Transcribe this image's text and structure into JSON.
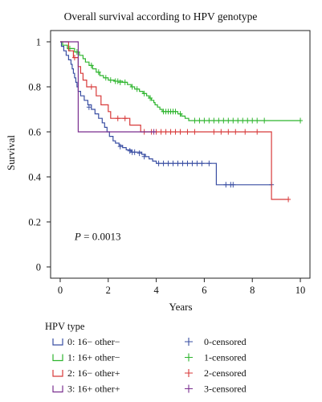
{
  "chart_data": {
    "type": "line",
    "subtype": "kaplan-meier-step",
    "title": "Overall survival according to HPV genotype",
    "xlabel": "Years",
    "ylabel": "Survival",
    "xlim": [
      -0.4,
      10.4
    ],
    "ylim": [
      -0.05,
      1.05
    ],
    "xticks": [
      0,
      2,
      4,
      6,
      8,
      10
    ],
    "yticks": [
      0,
      0.2,
      0.4,
      0.6,
      0.8,
      1
    ],
    "annotation": {
      "text": "P = 0.0013",
      "italic_part": "P",
      "rest": " = 0.0013",
      "x": 0.6,
      "y": 0.12
    },
    "grid": false,
    "legend": {
      "title": "HPV type",
      "placement": "bottom",
      "line_items": [
        "0: 16− other−",
        "1: 16+ other−",
        "2: 16− other+",
        "3: 16+ other+"
      ],
      "censor_items": [
        "0-censored",
        "1-censored",
        "2-censored",
        "3-censored"
      ]
    },
    "series": [
      {
        "name": "0: 16− other−",
        "censor_label": "0-censored",
        "color": "#3a4fa3",
        "steps": [
          [
            0,
            1.0
          ],
          [
            0.05,
            0.98
          ],
          [
            0.15,
            0.96
          ],
          [
            0.25,
            0.94
          ],
          [
            0.35,
            0.92
          ],
          [
            0.45,
            0.9
          ],
          [
            0.5,
            0.88
          ],
          [
            0.55,
            0.86
          ],
          [
            0.6,
            0.84
          ],
          [
            0.65,
            0.82
          ],
          [
            0.7,
            0.8
          ],
          [
            0.75,
            0.78
          ],
          [
            0.85,
            0.76
          ],
          [
            1.0,
            0.74
          ],
          [
            1.15,
            0.72
          ],
          [
            1.3,
            0.7
          ],
          [
            1.45,
            0.68
          ],
          [
            1.6,
            0.66
          ],
          [
            1.75,
            0.64
          ],
          [
            1.85,
            0.62
          ],
          [
            1.95,
            0.6
          ],
          [
            2.05,
            0.58
          ],
          [
            2.2,
            0.56
          ],
          [
            2.3,
            0.55
          ],
          [
            2.45,
            0.54
          ],
          [
            2.6,
            0.53
          ],
          [
            2.75,
            0.52
          ],
          [
            2.95,
            0.51
          ],
          [
            3.4,
            0.5
          ],
          [
            3.55,
            0.49
          ],
          [
            3.7,
            0.48
          ],
          [
            3.85,
            0.47
          ],
          [
            4.0,
            0.46
          ],
          [
            6.5,
            0.365
          ],
          [
            8.8,
            0.365
          ]
        ],
        "censored": [
          [
            1.2,
            0.71
          ],
          [
            2.5,
            0.535
          ],
          [
            2.9,
            0.515
          ],
          [
            3.0,
            0.51
          ],
          [
            3.1,
            0.51
          ],
          [
            3.3,
            0.505
          ],
          [
            3.5,
            0.49
          ],
          [
            4.1,
            0.46
          ],
          [
            4.3,
            0.46
          ],
          [
            4.5,
            0.46
          ],
          [
            4.7,
            0.46
          ],
          [
            4.9,
            0.46
          ],
          [
            5.1,
            0.46
          ],
          [
            5.3,
            0.46
          ],
          [
            5.5,
            0.46
          ],
          [
            5.7,
            0.46
          ],
          [
            5.9,
            0.46
          ],
          [
            6.2,
            0.46
          ],
          [
            6.9,
            0.365
          ],
          [
            7.1,
            0.365
          ],
          [
            7.2,
            0.365
          ],
          [
            8.8,
            0.365
          ]
        ]
      },
      {
        "name": "1: 16+ other−",
        "censor_label": "1-censored",
        "color": "#2fb52f",
        "steps": [
          [
            0,
            1.0
          ],
          [
            0.1,
            0.985
          ],
          [
            0.3,
            0.97
          ],
          [
            0.6,
            0.955
          ],
          [
            0.8,
            0.94
          ],
          [
            0.95,
            0.925
          ],
          [
            1.05,
            0.91
          ],
          [
            1.2,
            0.895
          ],
          [
            1.35,
            0.88
          ],
          [
            1.5,
            0.865
          ],
          [
            1.65,
            0.85
          ],
          [
            1.8,
            0.84
          ],
          [
            2.0,
            0.83
          ],
          [
            2.25,
            0.825
          ],
          [
            2.6,
            0.82
          ],
          [
            2.8,
            0.81
          ],
          [
            2.95,
            0.8
          ],
          [
            3.1,
            0.79
          ],
          [
            3.3,
            0.78
          ],
          [
            3.45,
            0.77
          ],
          [
            3.6,
            0.76
          ],
          [
            3.7,
            0.75
          ],
          [
            3.8,
            0.74
          ],
          [
            3.9,
            0.73
          ],
          [
            3.95,
            0.72
          ],
          [
            4.05,
            0.71
          ],
          [
            4.15,
            0.7
          ],
          [
            4.25,
            0.69
          ],
          [
            4.9,
            0.68
          ],
          [
            5.05,
            0.67
          ],
          [
            5.2,
            0.66
          ],
          [
            5.35,
            0.65
          ],
          [
            10.0,
            0.65
          ]
        ],
        "censored": [
          [
            0.4,
            0.97
          ],
          [
            0.7,
            0.955
          ],
          [
            1.3,
            0.895
          ],
          [
            1.6,
            0.865
          ],
          [
            1.9,
            0.84
          ],
          [
            2.1,
            0.83
          ],
          [
            2.3,
            0.825
          ],
          [
            2.4,
            0.825
          ],
          [
            2.5,
            0.82
          ],
          [
            2.7,
            0.82
          ],
          [
            3.0,
            0.8
          ],
          [
            3.2,
            0.79
          ],
          [
            3.5,
            0.77
          ],
          [
            3.75,
            0.75
          ],
          [
            4.3,
            0.69
          ],
          [
            4.4,
            0.69
          ],
          [
            4.5,
            0.69
          ],
          [
            4.6,
            0.69
          ],
          [
            4.7,
            0.69
          ],
          [
            4.8,
            0.69
          ],
          [
            5.0,
            0.68
          ],
          [
            5.6,
            0.65
          ],
          [
            5.8,
            0.65
          ],
          [
            6.0,
            0.65
          ],
          [
            6.2,
            0.65
          ],
          [
            6.4,
            0.65
          ],
          [
            6.6,
            0.65
          ],
          [
            6.8,
            0.65
          ],
          [
            7.0,
            0.65
          ],
          [
            7.2,
            0.65
          ],
          [
            7.4,
            0.65
          ],
          [
            7.6,
            0.65
          ],
          [
            7.8,
            0.65
          ],
          [
            8.0,
            0.65
          ],
          [
            8.2,
            0.65
          ],
          [
            8.5,
            0.65
          ],
          [
            10.0,
            0.65
          ]
        ]
      },
      {
        "name": "2: 16− other+",
        "censor_label": "2-censored",
        "color": "#d83a3a",
        "steps": [
          [
            0,
            1.0
          ],
          [
            0.35,
            0.96
          ],
          [
            0.55,
            0.93
          ],
          [
            0.75,
            0.89
          ],
          [
            0.85,
            0.86
          ],
          [
            0.95,
            0.83
          ],
          [
            1.1,
            0.8
          ],
          [
            1.5,
            0.76
          ],
          [
            1.7,
            0.72
          ],
          [
            2.0,
            0.69
          ],
          [
            2.1,
            0.66
          ],
          [
            2.9,
            0.63
          ],
          [
            3.35,
            0.6
          ],
          [
            8.8,
            0.3
          ],
          [
            9.5,
            0.3
          ]
        ],
        "censored": [
          [
            0.6,
            0.93
          ],
          [
            1.3,
            0.8
          ],
          [
            2.4,
            0.66
          ],
          [
            2.7,
            0.66
          ],
          [
            3.5,
            0.6
          ],
          [
            3.8,
            0.6
          ],
          [
            4.0,
            0.6
          ],
          [
            4.2,
            0.6
          ],
          [
            4.4,
            0.6
          ],
          [
            4.6,
            0.6
          ],
          [
            4.8,
            0.6
          ],
          [
            5.0,
            0.6
          ],
          [
            5.3,
            0.6
          ],
          [
            5.6,
            0.6
          ],
          [
            6.4,
            0.6
          ],
          [
            6.7,
            0.6
          ],
          [
            7.0,
            0.6
          ],
          [
            7.3,
            0.6
          ],
          [
            7.7,
            0.6
          ],
          [
            8.2,
            0.6
          ],
          [
            9.5,
            0.3
          ]
        ]
      },
      {
        "name": "3: 16+ other+",
        "censor_label": "3-censored",
        "color": "#7a2f8f",
        "steps": [
          [
            0,
            1.0
          ],
          [
            0.75,
            0.6
          ],
          [
            4.0,
            0.6
          ]
        ],
        "censored": [
          [
            3.9,
            0.6
          ]
        ]
      }
    ]
  }
}
